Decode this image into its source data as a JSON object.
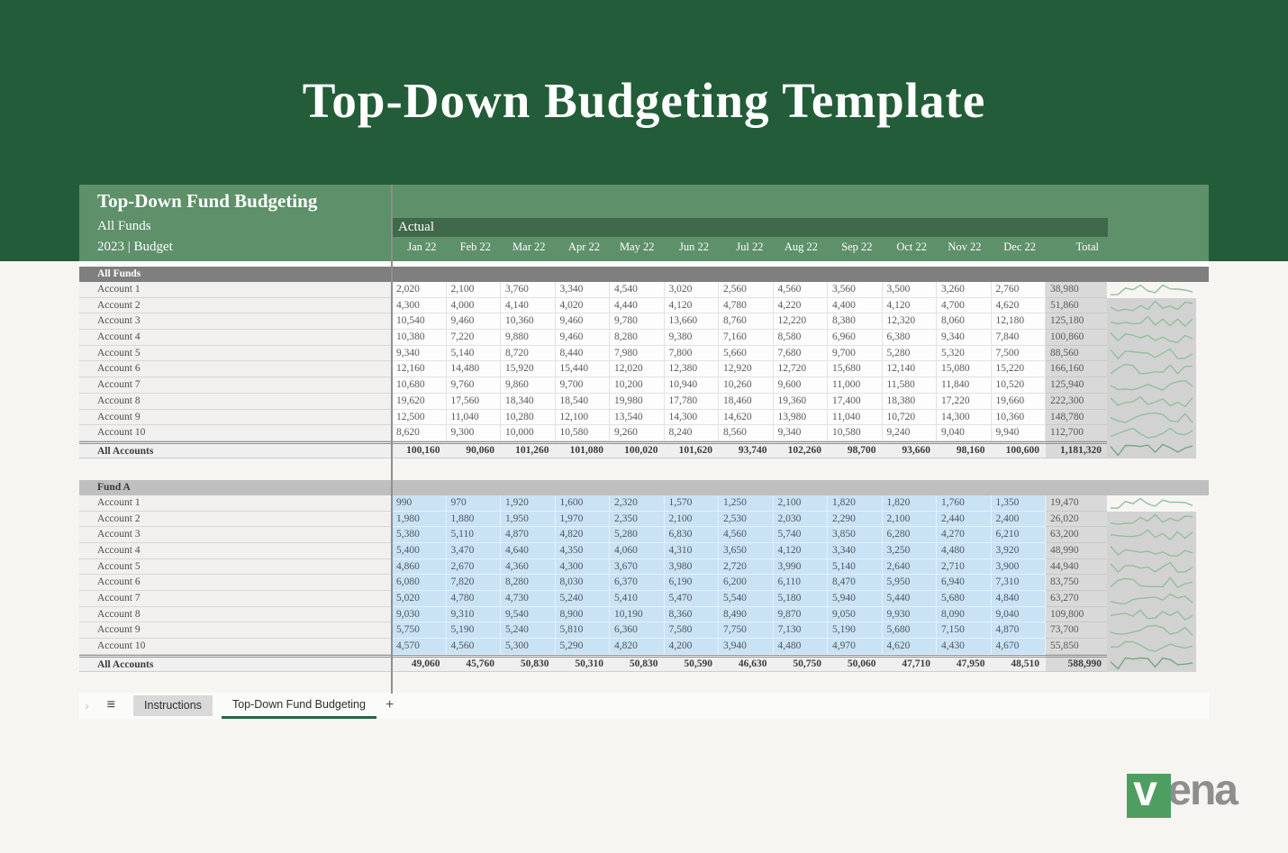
{
  "banner": {
    "title": "Top-Down Budgeting Template"
  },
  "sheet": {
    "title": "Top-Down Fund Budgeting",
    "subtitle1": "All Funds",
    "subtitle2": "2023 | Budget",
    "scenario_label": "Actual",
    "months": [
      "Jan 22",
      "Feb 22",
      "Mar 22",
      "Apr 22",
      "May 22",
      "Jun 22",
      "Jul 22",
      "Aug 22",
      "Sep 22",
      "Oct 22",
      "Nov 22",
      "Dec 22"
    ],
    "total_label": "Total",
    "sections": [
      {
        "name": "All Funds",
        "style": "dark",
        "rows": [
          {
            "label": "Account 1",
            "values": [
              "2,020",
              "2,100",
              "3,760",
              "3,340",
              "4,540",
              "3,020",
              "2,560",
              "4,560",
              "3,560",
              "3,500",
              "3,260",
              "2,760"
            ],
            "total": "38,980"
          },
          {
            "label": "Account 2",
            "values": [
              "4,300",
              "4,000",
              "4,140",
              "4,020",
              "4,440",
              "4,120",
              "4,780",
              "4,220",
              "4,400",
              "4,120",
              "4,700",
              "4,620"
            ],
            "total": "51,860"
          },
          {
            "label": "Account 3",
            "values": [
              "10,540",
              "9,460",
              "10,360",
              "9,460",
              "9,780",
              "13,660",
              "8,760",
              "12,220",
              "8,380",
              "12,320",
              "8,060",
              "12,180"
            ],
            "total": "125,180"
          },
          {
            "label": "Account 4",
            "values": [
              "10,380",
              "7,220",
              "9,880",
              "9,460",
              "8,280",
              "9,380",
              "7,160",
              "8,580",
              "6,960",
              "6,380",
              "9,340",
              "7,840"
            ],
            "total": "100,860"
          },
          {
            "label": "Account 5",
            "values": [
              "9,340",
              "5,140",
              "8,720",
              "8,440",
              "7,980",
              "7,800",
              "5,660",
              "7,680",
              "9,700",
              "5,280",
              "5,320",
              "7,500"
            ],
            "total": "88,560"
          },
          {
            "label": "Account 6",
            "values": [
              "12,160",
              "14,480",
              "15,920",
              "15,440",
              "12,020",
              "12,380",
              "12,920",
              "12,720",
              "15,680",
              "12,140",
              "15,080",
              "15,220"
            ],
            "total": "166,160"
          },
          {
            "label": "Account 7",
            "values": [
              "10,680",
              "9,760",
              "9,860",
              "9,700",
              "10,200",
              "10,940",
              "10,260",
              "9,600",
              "11,000",
              "11,580",
              "11,840",
              "10,520"
            ],
            "total": "125,940"
          },
          {
            "label": "Account 8",
            "values": [
              "19,620",
              "17,560",
              "18,340",
              "18,540",
              "19,980",
              "17,780",
              "18,460",
              "19,360",
              "17,400",
              "18,380",
              "17,220",
              "19,660"
            ],
            "total": "222,300"
          },
          {
            "label": "Account 9",
            "values": [
              "12,500",
              "11,040",
              "10,280",
              "12,100",
              "13,540",
              "14,300",
              "14,620",
              "13,980",
              "11,040",
              "10,720",
              "14,300",
              "10,360"
            ],
            "total": "148,780"
          },
          {
            "label": "Account 10",
            "values": [
              "8,620",
              "9,300",
              "10,000",
              "10,580",
              "9,260",
              "8,240",
              "8,560",
              "9,340",
              "10,580",
              "9,240",
              "9,040",
              "9,940"
            ],
            "total": "112,700"
          }
        ],
        "total_row": {
          "label": "All Accounts",
          "values": [
            "100,160",
            "90,060",
            "101,260",
            "101,080",
            "100,020",
            "101,620",
            "93,740",
            "102,260",
            "98,700",
            "93,660",
            "98,160",
            "100,600"
          ],
          "total": "1,181,320"
        }
      },
      {
        "name": "Fund A",
        "style": "light",
        "rows": [
          {
            "label": "Account 1",
            "values": [
              "990",
              "970",
              "1,920",
              "1,600",
              "2,320",
              "1,570",
              "1,250",
              "2,100",
              "1,820",
              "1,820",
              "1,760",
              "1,350"
            ],
            "total": "19,470"
          },
          {
            "label": "Account 2",
            "values": [
              "1,980",
              "1,880",
              "1,950",
              "1,970",
              "2,350",
              "2,100",
              "2,530",
              "2,030",
              "2,290",
              "2,100",
              "2,440",
              "2,400"
            ],
            "total": "26,020"
          },
          {
            "label": "Account 3",
            "values": [
              "5,380",
              "5,110",
              "4,870",
              "4,820",
              "5,280",
              "6,830",
              "4,560",
              "5,740",
              "3,850",
              "6,280",
              "4,270",
              "6,210"
            ],
            "total": "63,200"
          },
          {
            "label": "Account 4",
            "values": [
              "5,400",
              "3,470",
              "4,640",
              "4,350",
              "4,060",
              "4,310",
              "3,650",
              "4,120",
              "3,340",
              "3,250",
              "4,480",
              "3,920"
            ],
            "total": "48,990"
          },
          {
            "label": "Account 5",
            "values": [
              "4,860",
              "2,670",
              "4,360",
              "4,300",
              "3,670",
              "3,980",
              "2,720",
              "3,990",
              "5,140",
              "2,640",
              "2,710",
              "3,900"
            ],
            "total": "44,940"
          },
          {
            "label": "Account 6",
            "values": [
              "6,080",
              "7,820",
              "8,280",
              "8,030",
              "6,370",
              "6,190",
              "6,200",
              "6,110",
              "8,470",
              "5,950",
              "6,940",
              "7,310"
            ],
            "total": "83,750"
          },
          {
            "label": "Account 7",
            "values": [
              "5,020",
              "4,780",
              "4,730",
              "5,240",
              "5,410",
              "5,470",
              "5,540",
              "5,180",
              "5,940",
              "5,440",
              "5,680",
              "4,840"
            ],
            "total": "63,270"
          },
          {
            "label": "Account 8",
            "values": [
              "9,030",
              "9,310",
              "9,540",
              "8,900",
              "10,190",
              "8,360",
              "8,490",
              "9,870",
              "9,050",
              "9,930",
              "8,090",
              "9,040"
            ],
            "total": "109,800"
          },
          {
            "label": "Account 9",
            "values": [
              "5,750",
              "5,190",
              "5,240",
              "5,810",
              "6,360",
              "7,580",
              "7,750",
              "7,130",
              "5,190",
              "5,680",
              "7,150",
              "4,870"
            ],
            "total": "73,700"
          },
          {
            "label": "Account 10",
            "values": [
              "4,570",
              "4,560",
              "5,300",
              "5,290",
              "4,820",
              "4,200",
              "3,940",
              "4,480",
              "4,970",
              "4,620",
              "4,430",
              "4,670"
            ],
            "total": "55,850"
          }
        ],
        "total_row": {
          "label": "All Accounts",
          "values": [
            "49,060",
            "45,760",
            "50,830",
            "50,310",
            "50,830",
            "50,590",
            "46,630",
            "50,750",
            "50,060",
            "47,710",
            "47,950",
            "48,510"
          ],
          "total": "588,990"
        }
      }
    ]
  },
  "tab_bar": {
    "chevron": "›",
    "menu_icon": "≡",
    "tabs": [
      {
        "label": "Instructions",
        "active": false
      },
      {
        "label": "Top-Down Fund Budgeting",
        "active": true
      }
    ],
    "add_label": "+"
  },
  "logo": {
    "mark_letter": "v",
    "word_rest": "ena"
  },
  "colors": {
    "banner_green": "#235c38",
    "header_green": "#5e9069",
    "actual_band_green": "#40684a",
    "section_band_dark": "#7f7f7f",
    "section_band_light": "#bfbfbf",
    "blue_cell": "#c9e2f4",
    "total_column_gray": "#d9d9d9",
    "sparkline_green": "#93bf9d",
    "sparkline_total_green": "#74a87f",
    "tab_underline_green": "#24673f",
    "logo_green": "#4f9e61"
  }
}
